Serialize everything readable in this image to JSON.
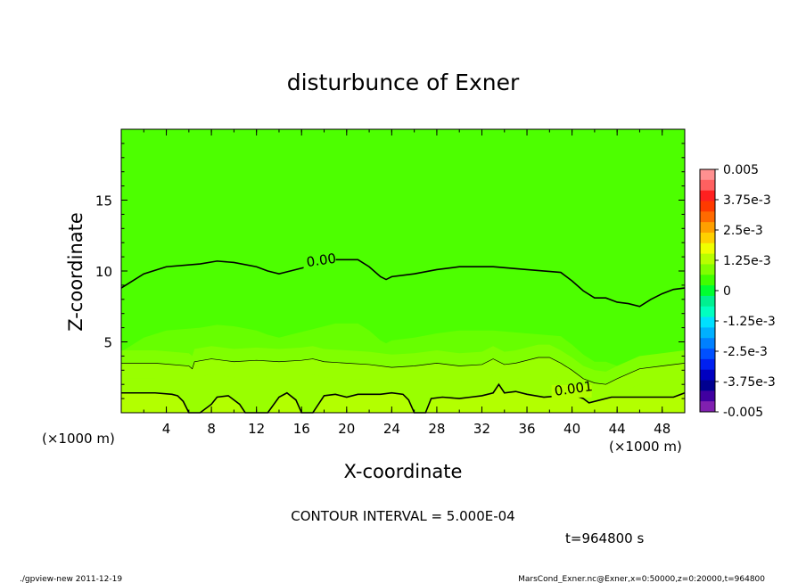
{
  "chart_data": {
    "type": "contour",
    "title": "disturbunce of Exner",
    "xlabel": "X-coordinate",
    "ylabel": "Z-coordinate",
    "x_unit": "(×1000 m)",
    "x_unit_left": "(×1000 m)",
    "xlim": [
      0,
      50
    ],
    "ylim": [
      0,
      20
    ],
    "x_ticks": [
      4,
      8,
      12,
      16,
      20,
      24,
      28,
      32,
      36,
      40,
      44,
      48
    ],
    "y_ticks": [
      5,
      10,
      15
    ],
    "contour_interval_label": "CONTOUR INTERVAL = 5.000E-04",
    "time_label": "t=964800 s",
    "contour_labels": [
      {
        "text": "0.00",
        "x": 16.5,
        "z": 10.3
      },
      {
        "text": "0.001",
        "x": 38.5,
        "z": 1.2
      }
    ],
    "contours": [
      {
        "level": 0.0,
        "line": "thick",
        "points": [
          [
            0,
            8.8
          ],
          [
            2,
            9.8
          ],
          [
            4,
            10.3
          ],
          [
            7,
            10.5
          ],
          [
            8.5,
            10.7
          ],
          [
            10,
            10.6
          ],
          [
            12,
            10.3
          ],
          [
            13,
            10.0
          ],
          [
            14,
            9.8
          ],
          [
            15,
            10.0
          ],
          [
            17,
            10.4
          ],
          [
            19,
            10.8
          ],
          [
            21,
            10.8
          ],
          [
            22,
            10.3
          ],
          [
            23,
            9.6
          ],
          [
            23.5,
            9.4
          ],
          [
            24,
            9.6
          ],
          [
            26,
            9.8
          ],
          [
            28,
            10.1
          ],
          [
            30,
            10.3
          ],
          [
            33,
            10.3
          ],
          [
            36,
            10.1
          ],
          [
            39,
            9.9
          ],
          [
            40,
            9.3
          ],
          [
            41,
            8.6
          ],
          [
            42,
            8.1
          ],
          [
            43,
            8.1
          ],
          [
            44,
            7.8
          ],
          [
            45,
            7.7
          ],
          [
            46,
            7.5
          ],
          [
            47,
            8.0
          ],
          [
            48,
            8.4
          ],
          [
            49,
            8.7
          ],
          [
            50,
            8.8
          ]
        ]
      },
      {
        "level": 0.0005,
        "line": "thin",
        "points": [
          [
            0,
            3.5
          ],
          [
            3,
            3.5
          ],
          [
            6,
            3.3
          ],
          [
            6.3,
            3.1
          ],
          [
            6.5,
            3.6
          ],
          [
            8,
            3.8
          ],
          [
            10,
            3.6
          ],
          [
            12,
            3.7
          ],
          [
            14,
            3.6
          ],
          [
            16,
            3.7
          ],
          [
            17,
            3.8
          ],
          [
            18,
            3.6
          ],
          [
            20,
            3.5
          ],
          [
            22,
            3.4
          ],
          [
            24,
            3.2
          ],
          [
            26,
            3.3
          ],
          [
            28,
            3.5
          ],
          [
            30,
            3.3
          ],
          [
            32,
            3.4
          ],
          [
            33,
            3.8
          ],
          [
            34,
            3.4
          ],
          [
            35,
            3.5
          ],
          [
            37,
            3.9
          ],
          [
            38,
            3.9
          ],
          [
            39,
            3.5
          ],
          [
            40,
            3.0
          ],
          [
            41,
            2.4
          ],
          [
            42,
            2.1
          ],
          [
            43,
            2.0
          ],
          [
            44,
            2.4
          ],
          [
            46,
            3.1
          ],
          [
            48,
            3.3
          ],
          [
            50,
            3.5
          ]
        ]
      },
      {
        "level": 0.001,
        "line": "thick",
        "points": [
          [
            0,
            1.4
          ],
          [
            3,
            1.4
          ],
          [
            4.5,
            1.3
          ],
          [
            5,
            1.2
          ],
          [
            5.5,
            0.8
          ],
          [
            6,
            0
          ],
          [
            7,
            0
          ],
          [
            8,
            0.6
          ],
          [
            8.5,
            1.1
          ],
          [
            9.5,
            1.2
          ],
          [
            10.5,
            0.6
          ],
          [
            11,
            0
          ],
          [
            13,
            0
          ],
          [
            14,
            1.1
          ],
          [
            14.7,
            1.4
          ],
          [
            15.5,
            0.9
          ],
          [
            16,
            0
          ],
          [
            17,
            0
          ],
          [
            17.5,
            0.6
          ],
          [
            18,
            1.2
          ],
          [
            19,
            1.3
          ],
          [
            20,
            1.1
          ],
          [
            21,
            1.3
          ],
          [
            22,
            1.3
          ],
          [
            23,
            1.3
          ],
          [
            24,
            1.4
          ],
          [
            25,
            1.3
          ],
          [
            25.5,
            0.9
          ],
          [
            26,
            0
          ],
          [
            27,
            0
          ],
          [
            27.5,
            1.0
          ],
          [
            28.5,
            1.1
          ],
          [
            30,
            1.0
          ],
          [
            31,
            1.1
          ],
          [
            32,
            1.2
          ],
          [
            33,
            1.4
          ],
          [
            33.5,
            2.0
          ],
          [
            34,
            1.4
          ],
          [
            35,
            1.5
          ],
          [
            36,
            1.3
          ],
          [
            37.5,
            1.1
          ],
          [
            39,
            1.2
          ],
          [
            40,
            1.3
          ],
          [
            41,
            1.0
          ],
          [
            41.5,
            0.7
          ],
          [
            42.5,
            0.9
          ],
          [
            43.5,
            1.1
          ],
          [
            45,
            1.1
          ],
          [
            46,
            1.1
          ],
          [
            47,
            1.1
          ],
          [
            48,
            1.1
          ],
          [
            49,
            1.1
          ],
          [
            50,
            1.4
          ]
        ]
      }
    ],
    "colorbar": {
      "labels": [
        "0.005",
        "3.75e-3",
        "2.5e-3",
        "1.25e-3",
        "0",
        "-1.25e-3",
        "-2.5e-3",
        "-3.75e-3",
        "-0.005"
      ],
      "colors_top_to_bottom": [
        "#ff9090",
        "#ff6060",
        "#ff2020",
        "#ff3a00",
        "#ff6a00",
        "#ffa000",
        "#ffd000",
        "#f0ff00",
        "#b8ff00",
        "#80ff00",
        "#40ff00",
        "#00ff30",
        "#00f090",
        "#00ffc0",
        "#00e0ff",
        "#00b0ff",
        "#0080ff",
        "#0050ff",
        "#0020f0",
        "#0000c0",
        "#000090",
        "#4000a0",
        "#8020b0"
      ]
    },
    "fill_colors": {
      "level0": "#4dff00",
      "level1": "#67ff00",
      "level2": "#80ff00",
      "level3": "#99ff00",
      "level4": "#b3ff00"
    }
  },
  "footer": {
    "left": "./gpview-new   2011-12-19",
    "right": "MarsCond_Exner.nc@Exner,x=0:50000,z=0:20000,t=964800"
  }
}
